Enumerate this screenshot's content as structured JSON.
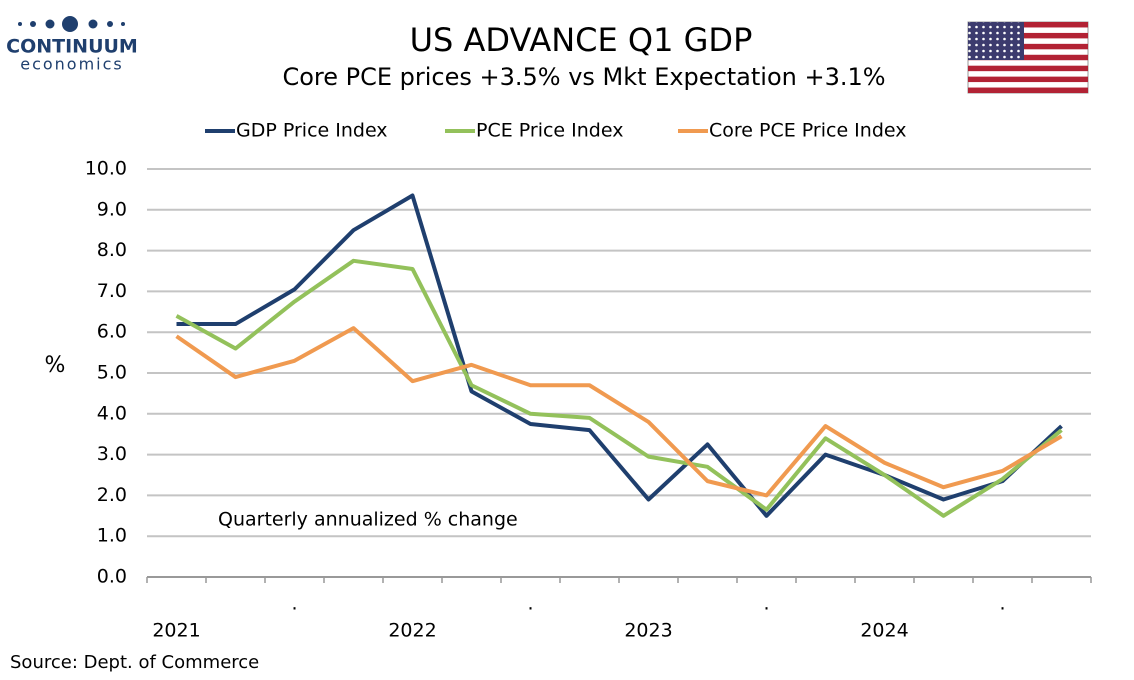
{
  "logo": {
    "name": "CONTINUUM",
    "sub": "economics"
  },
  "chart_data": {
    "type": "line",
    "title": "US ADVANCE Q1 GDP",
    "subtitle": "Core PCE prices +3.5% vs Mkt Expectation +3.1%",
    "y_label": "%",
    "annotation": "Quarterly annualized % change",
    "source": "Source: Dept. of Commerce",
    "categories": [
      "2021",
      null,
      ".",
      null,
      "2022",
      null,
      ".",
      null,
      "2023",
      null,
      ".",
      null,
      "2024",
      null,
      ".",
      null
    ],
    "series": [
      {
        "name": "GDP Price Index",
        "color": "#1f3f6e",
        "values": [
          6.2,
          6.2,
          7.05,
          8.5,
          9.35,
          4.55,
          3.75,
          3.6,
          1.9,
          3.25,
          1.5,
          3.0,
          2.5,
          1.9,
          2.35,
          3.7
        ]
      },
      {
        "name": "PCE Price Index",
        "color": "#93c15b",
        "values": [
          6.4,
          5.6,
          6.75,
          7.75,
          7.55,
          4.7,
          4.0,
          3.9,
          2.95,
          2.7,
          1.65,
          3.4,
          2.5,
          1.5,
          2.4,
          3.6
        ]
      },
      {
        "name": "Core PCE Price Index",
        "color": "#f09a50",
        "values": [
          5.9,
          4.9,
          5.3,
          6.1,
          4.8,
          5.2,
          4.7,
          4.7,
          3.8,
          2.35,
          2.0,
          3.7,
          2.8,
          2.2,
          2.6,
          3.45
        ]
      }
    ],
    "ylim": [
      0,
      10
    ],
    "yticks": [
      {
        "value": 0,
        "label": "0.0"
      },
      {
        "value": 1,
        "label": "1.0"
      },
      {
        "value": 2,
        "label": "2.0"
      },
      {
        "value": 3,
        "label": "3.0"
      },
      {
        "value": 4,
        "label": "4.0"
      },
      {
        "value": 5,
        "label": "5.0"
      },
      {
        "value": 6,
        "label": "6.0"
      },
      {
        "value": 7,
        "label": "7.0"
      },
      {
        "value": 8,
        "label": "8.0"
      },
      {
        "value": 9,
        "label": "9.0"
      },
      {
        "value": 10,
        "label": "10.0"
      }
    ],
    "grid": true,
    "legend": "top"
  }
}
